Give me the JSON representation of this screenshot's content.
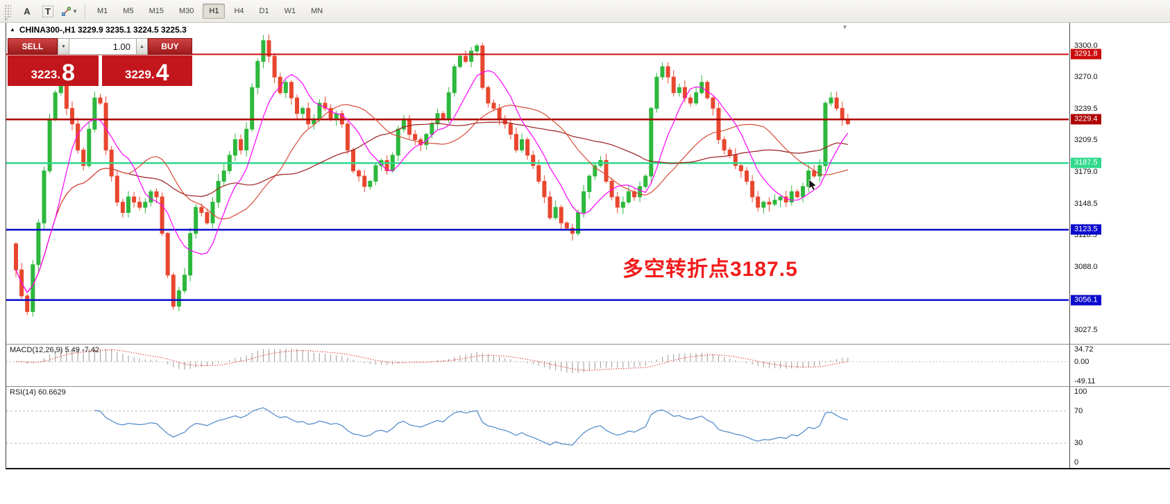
{
  "toolbar": {
    "grip_hint": "F",
    "tool_a": "A",
    "tool_t": "T",
    "timeframes": [
      "M1",
      "M5",
      "M15",
      "M30",
      "H1",
      "H4",
      "D1",
      "W1",
      "MN"
    ],
    "active_timeframe": "H1"
  },
  "icons": {
    "symbol_arrow": "▲",
    "caret_down": "▾",
    "spinner_down": "▼",
    "spinner_up": "▲",
    "shift_marker": "▼"
  },
  "chart": {
    "header": "CHINA300-,H1  3229.9 3235.1 3224.5 3225.3",
    "trade": {
      "sell": "SELL",
      "buy": "BUY",
      "volume": "1.00",
      "sell_small": "3223.",
      "sell_big": "8",
      "buy_small": "3229.",
      "buy_big": "4"
    },
    "annotation": "多空转折点3187.5",
    "axis_ticks": [
      3300.0,
      3270.0,
      3239.5,
      3209.5,
      3179.0,
      3148.5,
      3118.5,
      3088.0,
      3027.5
    ],
    "levels": [
      {
        "price": 3291.8,
        "badge": "3291.8",
        "color": "#cc0a0a",
        "width": 2
      },
      {
        "price": 3229.4,
        "badge": "3229.4",
        "color": "#ae0000",
        "width": 2.5
      },
      {
        "price": 3187.5,
        "badge": "3187.5",
        "color": "#2fd98c",
        "width": 2.5
      },
      {
        "price": 3123.5,
        "badge": "3123.5",
        "color": "#0a0acc",
        "width": 2.5
      },
      {
        "price": 3056.1,
        "badge": "3056.1",
        "color": "#0a0acc",
        "width": 2.5
      }
    ],
    "colors": {
      "bull": "#2db83d",
      "bear": "#e8472f",
      "ma_fast": "#ff00ff",
      "ma_mid": "#d84a35",
      "ma_slow": "#9b1c1c"
    },
    "chart_data": {
      "type": "candlestick",
      "symbol": "CHINA300-",
      "period": "H1",
      "first_open": 3110,
      "price_range_top": 3322,
      "price_range_bottom": 3014,
      "closes": [
        3085,
        3060,
        3045,
        3090,
        3130,
        3180,
        3230,
        3255,
        3262,
        3240,
        3225,
        3200,
        3185,
        3220,
        3250,
        3245,
        3200,
        3175,
        3150,
        3140,
        3155,
        3150,
        3145,
        3150,
        3160,
        3155,
        3120,
        3080,
        3050,
        3065,
        3080,
        3120,
        3145,
        3140,
        3130,
        3150,
        3170,
        3180,
        3195,
        3210,
        3200,
        3220,
        3260,
        3285,
        3305,
        3290,
        3270,
        3255,
        3265,
        3250,
        3235,
        3240,
        3225,
        3230,
        3245,
        3240,
        3230,
        3235,
        3225,
        3200,
        3180,
        3175,
        3165,
        3170,
        3185,
        3190,
        3180,
        3195,
        3220,
        3230,
        3215,
        3210,
        3205,
        3215,
        3225,
        3235,
        3230,
        3255,
        3280,
        3290,
        3285,
        3295,
        3300,
        3260,
        3245,
        3240,
        3230,
        3225,
        3215,
        3200,
        3210,
        3195,
        3185,
        3170,
        3155,
        3135,
        3145,
        3130,
        3125,
        3120,
        3140,
        3160,
        3175,
        3185,
        3190,
        3170,
        3155,
        3145,
        3150,
        3160,
        3155,
        3165,
        3175,
        3240,
        3270,
        3280,
        3270,
        3255,
        3260,
        3250,
        3245,
        3255,
        3265,
        3250,
        3240,
        3210,
        3200,
        3195,
        3185,
        3180,
        3170,
        3155,
        3145,
        3150,
        3148,
        3152,
        3155,
        3150,
        3160,
        3155,
        3165,
        3180,
        3175,
        3185,
        3245,
        3250,
        3240,
        3230,
        3225.3
      ]
    }
  },
  "macd": {
    "label": "MACD(12,26,9) 5.49 -7.42",
    "axis": [
      "34.72",
      "0.00",
      "-49.11"
    ],
    "scale_max": 34.72,
    "scale_min": -49.11,
    "hist_color": "#9a9a9a",
    "signal_color": "#e03030"
  },
  "rsi": {
    "label": "RSI(14) 60.6629",
    "axis": [
      "100",
      "70",
      "30",
      "0"
    ],
    "levels": [
      70,
      30
    ],
    "color": "#4a86c8"
  }
}
